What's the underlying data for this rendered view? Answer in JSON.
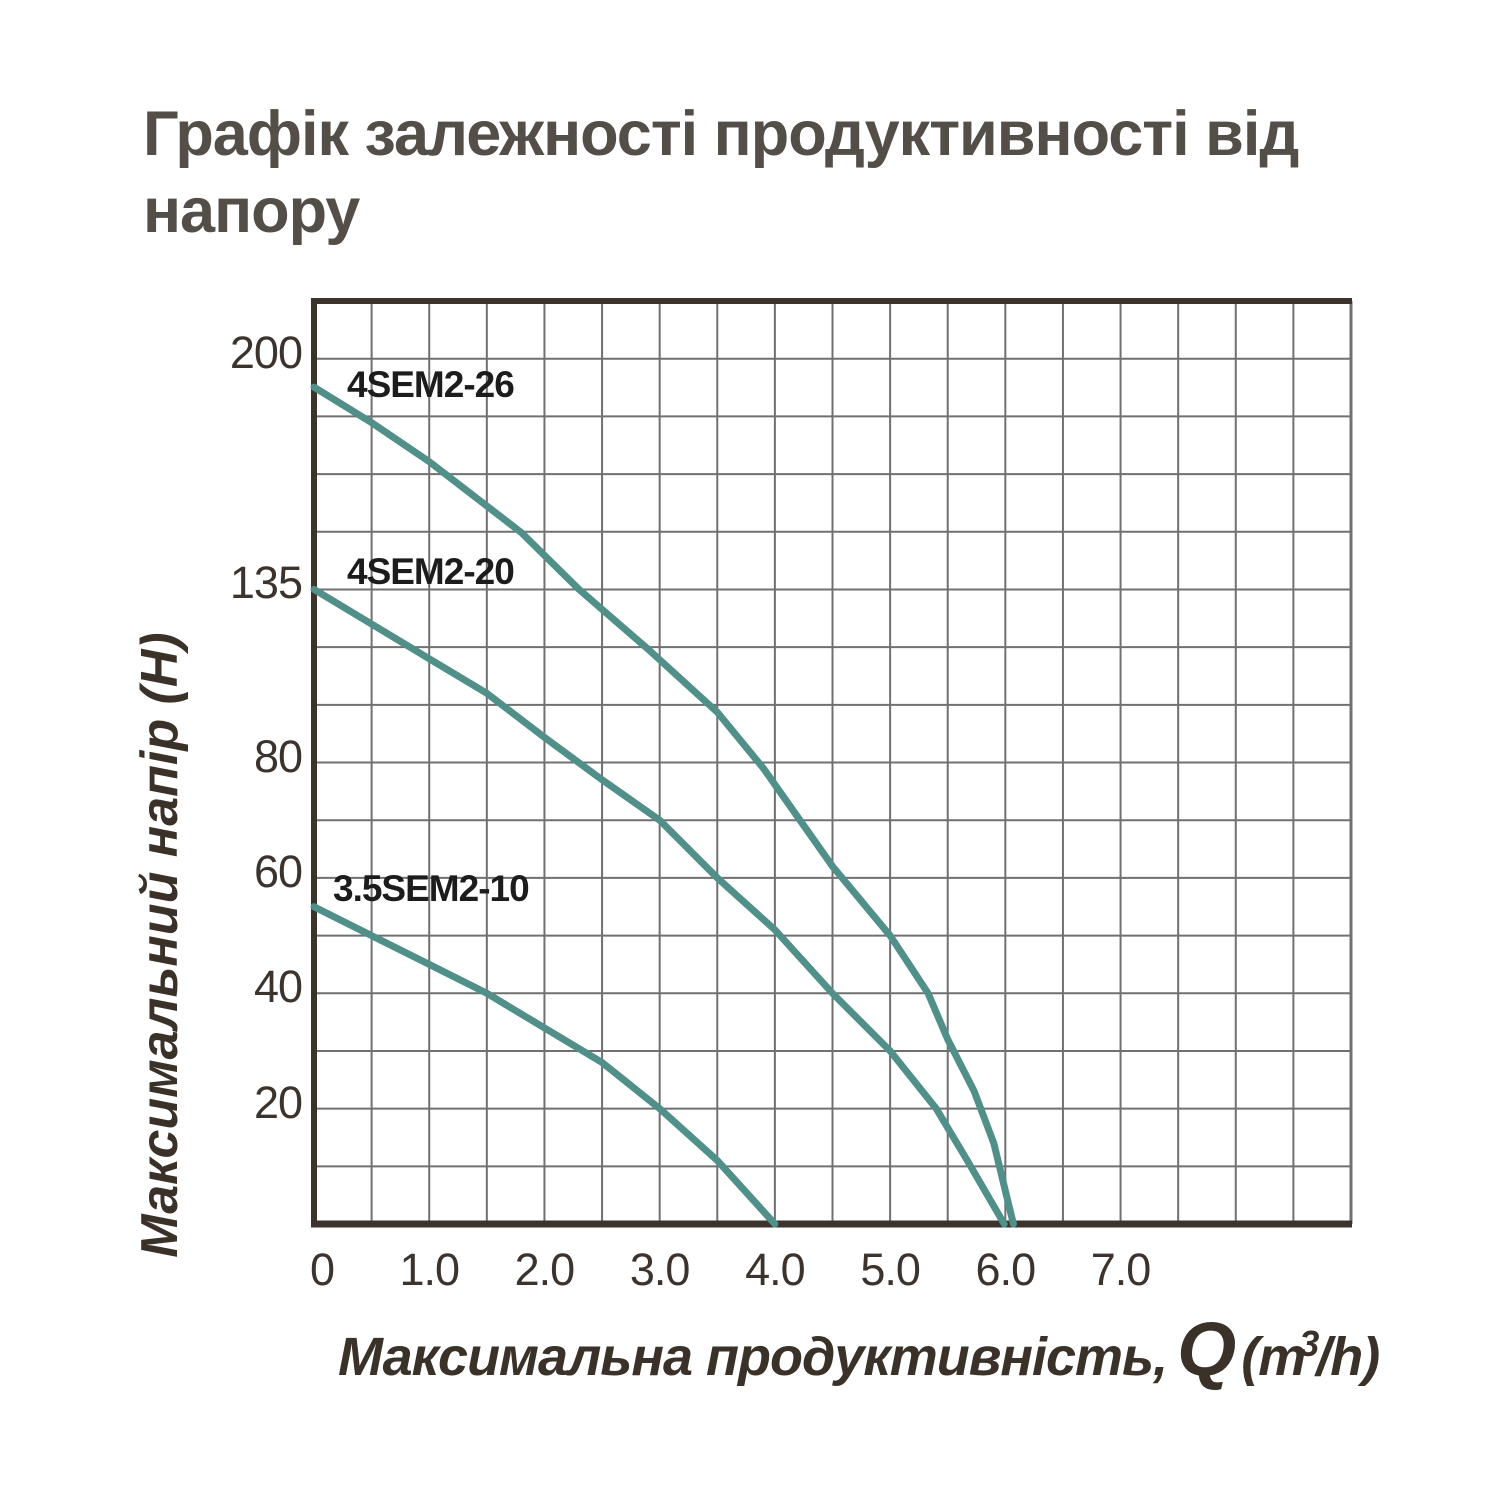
{
  "title": "Графік залежності продуктивності від напору",
  "y_axis": {
    "title": "Максимальний напір (Н)",
    "ticks": [
      {
        "label": "200",
        "gridline": 15
      },
      {
        "label": "135",
        "gridline": 11
      },
      {
        "label": "80",
        "gridline": 8
      },
      {
        "label": "60",
        "gridline": 6
      },
      {
        "label": "40",
        "gridline": 4
      },
      {
        "label": "20",
        "gridline": 2
      }
    ]
  },
  "x_axis": {
    "title_prefix": "Максимальна продуктивність,",
    "q_symbol": "Q",
    "unit_open": "(m",
    "unit_sup": "3",
    "unit_close": "/h)",
    "ticks": [
      {
        "label": "0",
        "q": 0
      },
      {
        "label": "1.0",
        "q": 1
      },
      {
        "label": "2.0",
        "q": 2
      },
      {
        "label": "3.0",
        "q": 3
      },
      {
        "label": "4.0",
        "q": 4
      },
      {
        "label": "5.0",
        "q": 5
      },
      {
        "label": "6.0",
        "q": 6
      },
      {
        "label": "7.0",
        "q": 7
      }
    ]
  },
  "colors": {
    "curve": "#509089",
    "grid": "#707070",
    "border_dark": "#3a342d",
    "title_text": "#544e48",
    "tick_text": "#3b332c",
    "axis_title_text": "#3a3129",
    "curve_label_text": "#1c1c1c"
  },
  "chart_data": {
    "type": "line",
    "title": "Графік залежності продуктивності від напору",
    "xlabel": "Максимальна продуктивність, Q (m³/h)",
    "ylabel": "Максимальний напір (Н)",
    "x_tick_values": [
      0,
      1.0,
      2.0,
      3.0,
      4.0,
      5.0,
      6.0,
      7.0
    ],
    "x_gridline_step": 0.5,
    "x_range": [
      0,
      9.0
    ],
    "y_tick_values": [
      20,
      40,
      60,
      80,
      135,
      200
    ],
    "y_axis_nonlinear_note": "y axis is non-linear: uniform gridlines, anchors map gridline-index (from bottom, 16 rows) to head value",
    "y_anchors": [
      [
        0,
        0
      ],
      [
        2,
        20
      ],
      [
        4,
        40
      ],
      [
        6,
        60
      ],
      [
        8,
        80
      ],
      [
        11,
        135
      ],
      [
        15,
        200
      ],
      [
        16,
        216
      ]
    ],
    "grid": true,
    "legend_position": "labels-on-chart",
    "series": [
      {
        "name": "4SEM2-26",
        "points": [
          [
            0,
            192
          ],
          [
            0.5,
            182
          ],
          [
            1.0,
            171
          ],
          [
            1.8,
            151
          ],
          [
            2.3,
            135
          ],
          [
            2.9,
            116
          ],
          [
            3.5,
            96
          ],
          [
            3.9,
            79
          ],
          [
            4.5,
            62
          ],
          [
            5.0,
            50
          ],
          [
            5.33,
            40
          ],
          [
            5.5,
            32
          ],
          [
            5.73,
            23
          ],
          [
            5.9,
            14
          ],
          [
            6.07,
            0
          ]
        ]
      },
      {
        "name": "4SEM2-20",
        "points": [
          [
            0,
            135
          ],
          [
            1.0,
            113
          ],
          [
            1.5,
            102
          ],
          [
            2.0,
            88
          ],
          [
            2.5,
            77
          ],
          [
            3.0,
            70
          ],
          [
            3.5,
            60
          ],
          [
            4.0,
            51
          ],
          [
            4.5,
            40
          ],
          [
            5.0,
            30
          ],
          [
            5.4,
            20
          ],
          [
            5.67,
            11
          ],
          [
            5.99,
            0
          ]
        ]
      },
      {
        "name": "3.5SEM2-10",
        "points": [
          [
            0,
            55
          ],
          [
            0.5,
            50
          ],
          [
            1.0,
            45
          ],
          [
            1.5,
            40
          ],
          [
            2.0,
            34
          ],
          [
            2.5,
            28
          ],
          [
            3.0,
            20
          ],
          [
            3.5,
            11
          ],
          [
            4.0,
            0
          ]
        ]
      }
    ]
  }
}
